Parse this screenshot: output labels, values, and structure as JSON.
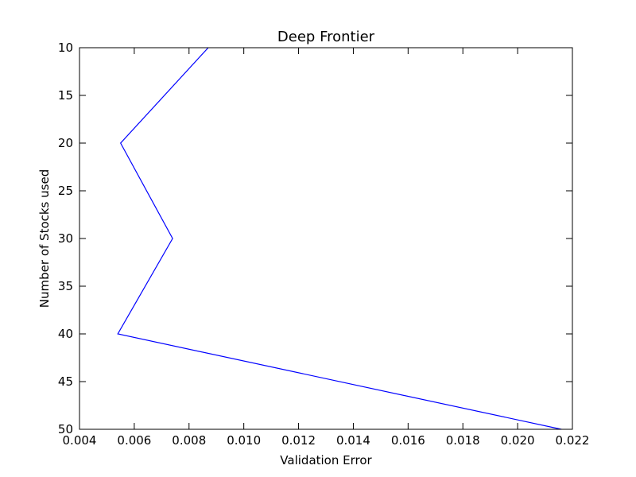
{
  "chart_data": {
    "type": "line",
    "title": "Deep Frontier",
    "xlabel": "Validation Error",
    "ylabel": "Number of Stocks used",
    "xlim": [
      0.004,
      0.022
    ],
    "ylim": [
      10,
      50
    ],
    "y_inverted": true,
    "grid": false,
    "xticks": [
      "0.004",
      "0.006",
      "0.008",
      "0.010",
      "0.012",
      "0.014",
      "0.016",
      "0.018",
      "0.020",
      "0.022"
    ],
    "yticks": [
      "10",
      "15",
      "20",
      "25",
      "30",
      "35",
      "40",
      "45",
      "50"
    ],
    "series": [
      {
        "color": "#0000ff",
        "points": [
          {
            "x": 0.0087,
            "y": 10
          },
          {
            "x": 0.0055,
            "y": 20
          },
          {
            "x": 0.0074,
            "y": 30
          },
          {
            "x": 0.0054,
            "y": 40
          },
          {
            "x": 0.0216,
            "y": 50
          }
        ]
      }
    ]
  }
}
